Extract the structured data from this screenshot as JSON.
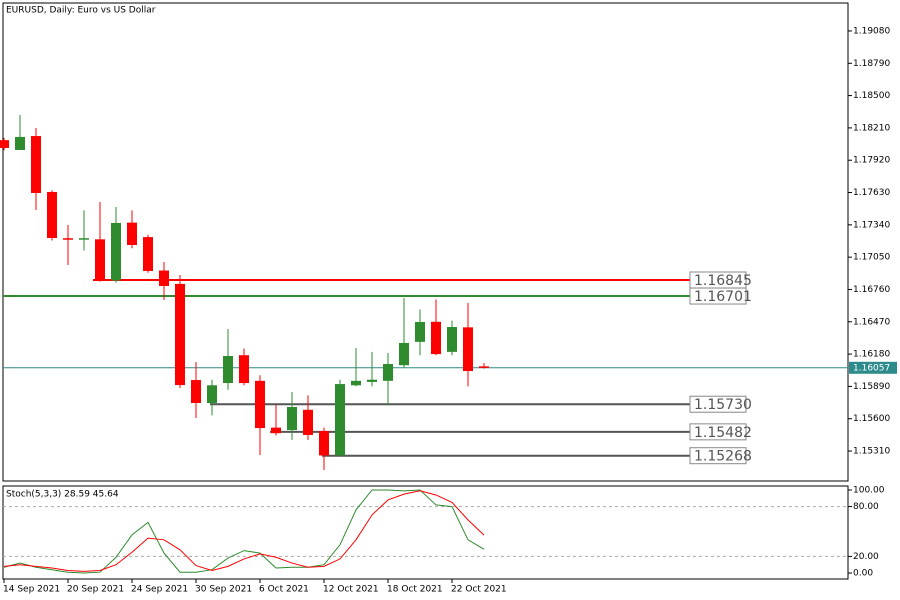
{
  "chart_data": [
    {
      "type": "candlestick",
      "title": "EURUSD, Daily: Euro vs US Dollar",
      "categories": [
        "14 Sep 2021",
        null,
        null,
        null,
        "20 Sep 2021",
        null,
        null,
        null,
        "24 Sep 2021",
        null,
        null,
        null,
        "30 Sep 2021",
        null,
        null,
        null,
        "6 Oct 2021",
        null,
        null,
        null,
        "12 Oct 2021",
        null,
        null,
        null,
        "18 Oct 2021",
        null,
        null,
        null,
        "22 Oct 2021",
        null,
        null
      ],
      "open": [
        1.181,
        1.18012,
        1.18137,
        1.17635,
        1.1722,
        1.1722,
        1.1721,
        1.1684,
        1.1736,
        1.1723,
        1.1693,
        1.1681,
        1.15947,
        1.1574,
        1.1592,
        1.1617,
        1.1594,
        1.1552,
        1.15498,
        1.1568,
        1.1549,
        1.1527,
        1.159,
        1.1593,
        1.1594,
        1.1608,
        1.1629,
        1.1647,
        1.162,
        1.1642,
        1.1607
      ],
      "high": [
        1.1812,
        1.18326,
        1.18209,
        1.1765,
        1.17339,
        1.1747,
        1.17545,
        1.175,
        1.1747,
        1.1725,
        1.17007,
        1.1689,
        1.16109,
        1.1595,
        1.16405,
        1.1623,
        1.1599,
        1.15723,
        1.1584,
        1.1581,
        1.1552,
        1.1595,
        1.16235,
        1.162,
        1.1619,
        1.16683,
        1.1658,
        1.1667,
        1.1648,
        1.1664,
        1.161
      ],
      "low": [
        1.1801,
        1.18012,
        1.17473,
        1.172,
        1.1698,
        1.1711,
        1.1683,
        1.1682,
        1.1713,
        1.1691,
        1.16665,
        1.15876,
        1.15606,
        1.1563,
        1.1586,
        1.159,
        1.15274,
        1.1545,
        1.1541,
        1.1541,
        1.1514,
        1.1526,
        1.1589,
        1.1589,
        1.1572,
        1.1606,
        1.1617,
        1.1617,
        1.1617,
        1.1589,
        1.1605
      ],
      "close": [
        1.1803,
        1.18129,
        1.17626,
        1.17222,
        1.1721,
        1.1722,
        1.16836,
        1.17357,
        1.17159,
        1.16926,
        1.16791,
        1.15902,
        1.15741,
        1.159,
        1.16163,
        1.1592,
        1.15516,
        1.1547,
        1.15705,
        1.15454,
        1.1527,
        1.15911,
        1.1594,
        1.1595,
        1.16091,
        1.1628,
        1.16468,
        1.1618,
        1.16423,
        1.16028,
        1.16057
      ],
      "up_color": "#2e8b2e",
      "down_color": "#ff0000",
      "ylim": [
        1.15041,
        1.19331
      ],
      "yticks": [
        {
          "value": 1.1908,
          "label": "1.19080"
        },
        {
          "value": 1.1879,
          "label": "1.18790"
        },
        {
          "value": 1.185,
          "label": "1.18500"
        },
        {
          "value": 1.1821,
          "label": "1.18210"
        },
        {
          "value": 1.1792,
          "label": "1.17920"
        },
        {
          "value": 1.1763,
          "label": "1.17630"
        },
        {
          "value": 1.1734,
          "label": "1.17340"
        },
        {
          "value": 1.1705,
          "label": "1.17050"
        },
        {
          "value": 1.1676,
          "label": "1.16760"
        },
        {
          "value": 1.1647,
          "label": "1.16470"
        },
        {
          "value": 1.1618,
          "label": "1.16180"
        },
        {
          "value": 1.1589,
          "label": "1.15890"
        },
        {
          "value": 1.156,
          "label": "1.15600"
        },
        {
          "value": 1.1531,
          "label": "1.15310"
        }
      ],
      "levels": [
        {
          "value": 1.16845,
          "color": "#ff0000"
        },
        {
          "value": 1.16701,
          "color": "#2e8b2e"
        },
        {
          "value": 1.1573,
          "label": "1.15730",
          "color": "#555555"
        },
        {
          "value": 1.15482,
          "color": "#555555"
        },
        {
          "value": 1.15268,
          "color": "#555555"
        }
      ],
      "current_price": {
        "value": 1.16057,
        "color": "#2e8b8b"
      }
    },
    {
      "type": "line",
      "title": "Stoch(5,3,3) 28.59 45.64",
      "ylim": [
        -7.2,
        104.8
      ],
      "yticks": [
        {
          "value": 100,
          "label": "100.00"
        },
        {
          "value": 80,
          "label": "80.00"
        },
        {
          "value": 20,
          "label": "20.00"
        },
        {
          "value": 0,
          "label": "0.00"
        }
      ],
      "levels": [
        80,
        20
      ],
      "series": [
        {
          "color": "#2e8b2e",
          "values": [
            7,
            12,
            7,
            4,
            1,
            0,
            1,
            19,
            46,
            61,
            24,
            1,
            1,
            4,
            18,
            27,
            24,
            6,
            7,
            7,
            10,
            34,
            76,
            100,
            100,
            99,
            100,
            82,
            80,
            40,
            28.59
          ]
        },
        {
          "color": "#ff0000",
          "values": [
            8,
            10,
            8,
            6,
            3,
            2,
            3,
            10,
            25,
            42,
            40,
            28,
            9,
            3,
            8,
            17,
            23,
            19,
            12,
            7,
            8,
            17,
            40,
            70,
            88,
            95,
            99,
            94,
            85,
            64,
            45.64
          ]
        }
      ]
    }
  ]
}
